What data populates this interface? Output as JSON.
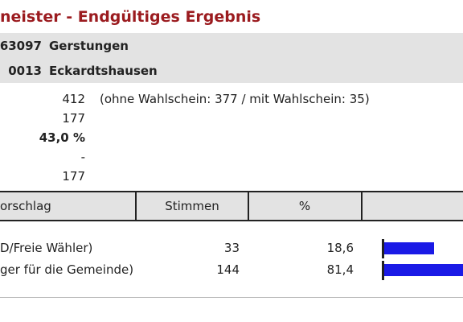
{
  "header": {
    "title": "neister - Endgültiges Ergebnis",
    "municipality_code": "63097",
    "municipality_name": "Gerstungen",
    "district_code": "0013",
    "district_name": "Eckardtshausen"
  },
  "stats": {
    "voters": "412",
    "voters_note": "(ohne Wahlschein: 377 / mit Wahlschein: 35)",
    "voted": "177",
    "turnout": "43,0 %",
    "invalid": "-",
    "valid": "177"
  },
  "table": {
    "col_proposal": "orschlag",
    "col_votes": "Stimmen",
    "col_percent": "%",
    "rows": [
      {
        "label": "D/Freie Wähler)",
        "votes": "33",
        "percent": "18,6",
        "share": 18.6,
        "bar_color": "#1a1ae6"
      },
      {
        "label": "ger für die Gemeinde)",
        "votes": "144",
        "percent": "81,4",
        "share": 81.4,
        "bar_color": "#1a1ae6"
      }
    ]
  },
  "colors": {
    "title": "#9b1b1f",
    "band_background": "#e3e3e3",
    "bar": "#1a1ae6"
  }
}
